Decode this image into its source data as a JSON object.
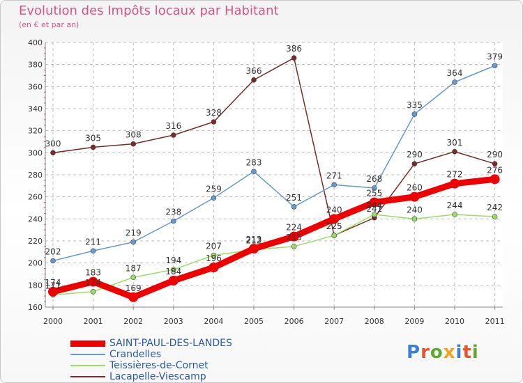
{
  "header": {
    "title": "Evolution des Impôts locaux par Habitant",
    "subtitle": "(en € et par an)"
  },
  "brand": {
    "logo_text": "Proxiti"
  },
  "colors": {
    "title": "#d9538a",
    "grid": "#bbbbbb",
    "axis_marks": "#d9538a",
    "legend_text": "#2b59a8"
  },
  "chart_data": {
    "type": "line",
    "title": "Evolution des Impôts locaux par Habitant",
    "subtitle": "(en € et par an)",
    "xlabel": "",
    "ylabel": "",
    "x": [
      "2000",
      "2001",
      "2002",
      "2003",
      "2004",
      "2005",
      "2006",
      "2007",
      "2008",
      "2009",
      "2010",
      "2011"
    ],
    "ylim": [
      160,
      400
    ],
    "yticks": [
      160,
      180,
      200,
      220,
      240,
      260,
      280,
      300,
      320,
      340,
      360,
      380,
      400
    ],
    "grid": true,
    "legend_position": "bottom-left",
    "series": [
      {
        "name": "SAINT-PAUL-DES-LANDES",
        "color": "#ee0000",
        "values": [
          174,
          183,
          169,
          184,
          196,
          213,
          224,
          240,
          255,
          260,
          272,
          276
        ]
      },
      {
        "name": "Crandelles",
        "color": "#6699cc",
        "values": [
          202,
          211,
          219,
          238,
          259,
          283,
          251,
          271,
          268,
          335,
          364,
          379
        ]
      },
      {
        "name": "Teissières-de-Cornet",
        "color": "#99dd66",
        "values": [
          171,
          174,
          187,
          194,
          207,
          212,
          215,
          225,
          244,
          240,
          244,
          242
        ]
      },
      {
        "name": "Lacapelle-Viescamp",
        "color": "#7a2a2a",
        "values": [
          300,
          305,
          308,
          316,
          328,
          366,
          386,
          225,
          241,
          290,
          301,
          290
        ]
      }
    ]
  }
}
